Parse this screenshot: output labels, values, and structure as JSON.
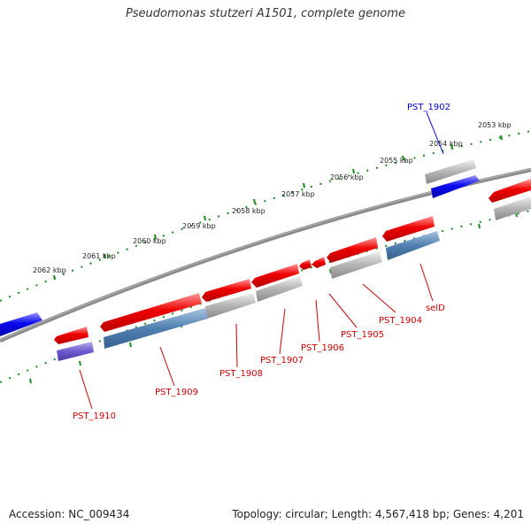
{
  "title": "Pseudomonas stutzeri A1501, complete genome",
  "footer": {
    "accession": "Accession: NC_009434",
    "topology": "Topology: circular; Length: 4,567,418 bp; Genes: 4,201"
  },
  "colors": {
    "backbone": "#777777",
    "tick": "#1a8a1a",
    "cds_forward": "#ee0000",
    "cds_reverse": "#0a0aee",
    "gene_grey": "#b4b4b4",
    "gene_steel": "#4f7fb0",
    "gene_purple": "#6a5acd",
    "label_red": "#cc0000",
    "label_blue": "#0000cc"
  },
  "scale_labels": [
    "2053 kbp",
    "2054 kbp",
    "2055 kbp",
    "2056 kbp",
    "2057 kbp",
    "2058 kbp",
    "2059 kbp",
    "2060 kbp",
    "2061 kbp",
    "2062 kbp"
  ],
  "gene_labels": [
    {
      "name": "PST_1902",
      "color": "blue"
    },
    {
      "name": "selD",
      "color": "red"
    },
    {
      "name": "PST_1904",
      "color": "red"
    },
    {
      "name": "PST_1905",
      "color": "red"
    },
    {
      "name": "PST_1906",
      "color": "red"
    },
    {
      "name": "PST_1907",
      "color": "red"
    },
    {
      "name": "PST_1908",
      "color": "red"
    },
    {
      "name": "PST_1909",
      "color": "red"
    },
    {
      "name": "PST_1910",
      "color": "red"
    }
  ]
}
